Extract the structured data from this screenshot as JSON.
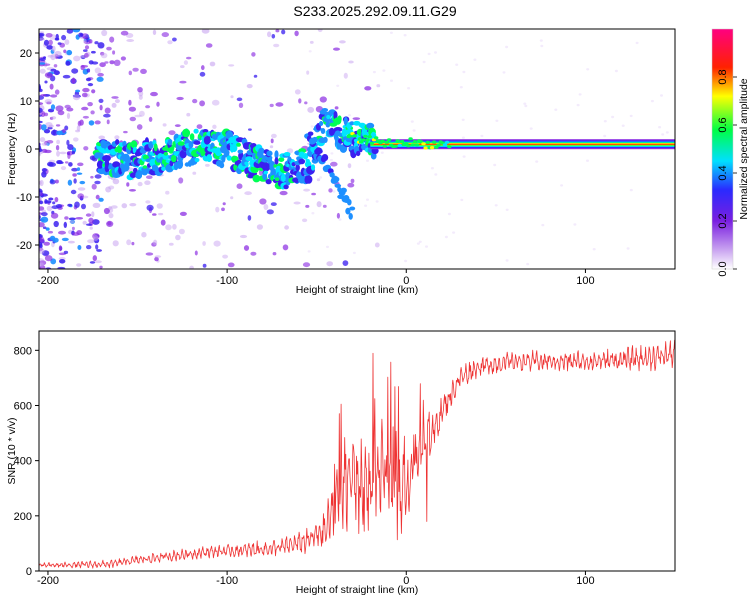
{
  "figure_title": "S233.2025.292.09.11.G29",
  "chart_data": [
    {
      "type": "heatmap",
      "title": "S233.2025.292.09.11.G29",
      "xlabel": "Height of straight line (km)",
      "ylabel": "Frequency (Hz)",
      "xlim": [
        -205,
        150
      ],
      "ylim": [
        -25,
        25
      ],
      "xticks": [
        -200,
        -100,
        0,
        100
      ],
      "yticks": [
        -20,
        -10,
        0,
        10,
        20
      ],
      "x_tick_labels": [
        "-200",
        "-100",
        "0",
        "100"
      ],
      "y_tick_labels": [
        "-20",
        "-10",
        "0",
        "10",
        "20"
      ],
      "colorbar": {
        "label": "Normalized spectral amplitude",
        "range": [
          0,
          1
        ],
        "ticks": [
          0.0,
          0.2,
          0.4,
          0.6,
          0.8
        ],
        "tick_labels": [
          "0.0",
          "0.2",
          "0.4",
          "0.6",
          "0.8"
        ],
        "colors": [
          "#ffffff",
          "#8a2be2",
          "#3333ff",
          "#00ffff",
          "#00ff00",
          "#ffff00",
          "#ff0000",
          "#ff00aa"
        ]
      },
      "ridge": {
        "description": "dominant frequency vs height",
        "x": [
          -170,
          -155,
          -140,
          -120,
          -100,
          -85,
          -70,
          -55,
          -45,
          -35,
          -25,
          -15,
          -5,
          0,
          10,
          20,
          40,
          80,
          120,
          150
        ],
        "y": [
          -1.5,
          -2.5,
          -1.5,
          0.5,
          0,
          -2.5,
          -5,
          -3,
          5,
          3,
          2,
          1.5,
          1,
          1.5,
          1,
          1,
          1,
          1,
          1,
          1
        ]
      },
      "secondary_branch": {
        "x": [
          -55,
          -50,
          -45,
          -40,
          -35,
          -30
        ],
        "y": [
          3,
          0,
          -3,
          -7,
          -10,
          -14
        ]
      }
    },
    {
      "type": "line",
      "xlabel": "Height of straight line (km)",
      "ylabel": "SNR (10 * v/v)",
      "xlim": [
        -205,
        150
      ],
      "ylim": [
        0,
        870
      ],
      "xticks": [
        -200,
        -100,
        0,
        100
      ],
      "yticks": [
        0,
        200,
        400,
        600,
        800
      ],
      "x_tick_labels": [
        "-200",
        "-100",
        "0",
        "100"
      ],
      "y_tick_labels": [
        "0",
        "200",
        "400",
        "600",
        "800"
      ],
      "series": [
        {
          "name": "SNR",
          "color": "#ee3333",
          "envelope_x": [
            -205,
            -165,
            -150,
            -130,
            -110,
            -90,
            -70,
            -55,
            -45,
            -38,
            -32,
            -25,
            -18,
            -12,
            -8,
            -3,
            0,
            5,
            10,
            15,
            20,
            25,
            30,
            40,
            60,
            80,
            100,
            120,
            140,
            150
          ],
          "envelope_y": [
            20,
            25,
            40,
            55,
            70,
            75,
            85,
            110,
            150,
            250,
            350,
            300,
            330,
            380,
            260,
            280,
            300,
            400,
            450,
            500,
            580,
            640,
            700,
            740,
            760,
            760,
            760,
            765,
            775,
            790
          ],
          "noise_amp_x": [
            -205,
            -140,
            -100,
            -60,
            -45,
            -35,
            -20,
            -10,
            0,
            10,
            20,
            40,
            100,
            150
          ],
          "noise_amp_y": [
            10,
            20,
            25,
            40,
            80,
            220,
            220,
            200,
            150,
            90,
            60,
            40,
            45,
            55
          ]
        }
      ]
    }
  ]
}
